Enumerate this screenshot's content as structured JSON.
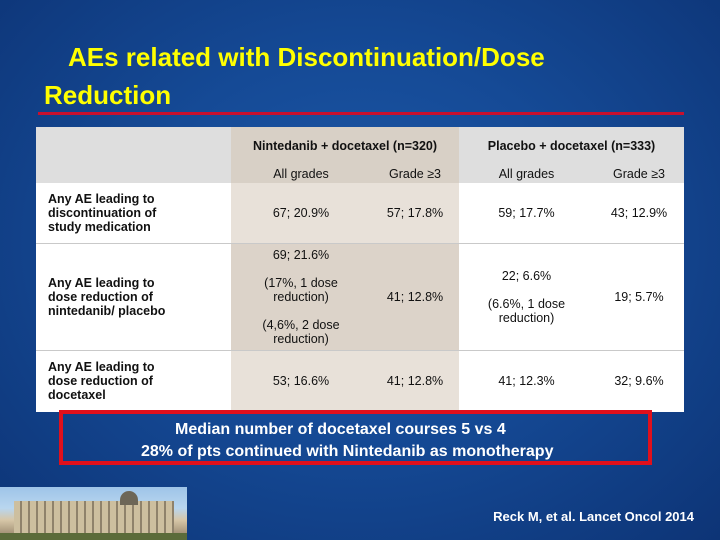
{
  "title": {
    "line1": "AEs related with Discontinuation/Dose",
    "line2": "Reduction"
  },
  "table": {
    "group_headers": [
      "Nintedanib + docetaxel (n=320)",
      "Placebo + docetaxel (n=333)"
    ],
    "sub_headers": [
      "All grades",
      "Grade ≥3",
      "All grades",
      "Grade ≥3"
    ],
    "rows": [
      {
        "label": [
          "Any AE leading to",
          "discontinuation of",
          "study medication"
        ],
        "nint_all": [
          "67; 20.9%"
        ],
        "nint_g3": "57; 17.8%",
        "plac_all": [
          "59; 17.7%"
        ],
        "plac_g3": "43; 12.9%"
      },
      {
        "label": [
          "Any AE leading to",
          "dose reduction of",
          "nintedanib/ placebo"
        ],
        "nint_all": [
          "69; 21.6%",
          "(17%, 1 dose reduction)",
          "(4,6%, 2 dose reduction)"
        ],
        "nint_g3": "41; 12.8%",
        "plac_all": [
          "22; 6.6%",
          "(6.6%, 1 dose reduction)"
        ],
        "plac_g3": "19; 5.7%"
      },
      {
        "label": [
          "Any AE leading to",
          "dose reduction of",
          "docetaxel"
        ],
        "nint_all": [
          "53; 16.6%"
        ],
        "nint_g3": "41; 12.8%",
        "plac_all": [
          "41; 12.3%"
        ],
        "plac_g3": "32; 9.6%"
      }
    ]
  },
  "box": {
    "line1": "Median number of docetaxel courses 5 vs 4",
    "line2": "28% of pts continued with Nintedanib as monotherapy"
  },
  "citation": "Reck M, et al. Lancet Oncol 2014",
  "colors": {
    "title": "#ffff00",
    "background": "#154a96",
    "accent_red": "#e0101c"
  }
}
